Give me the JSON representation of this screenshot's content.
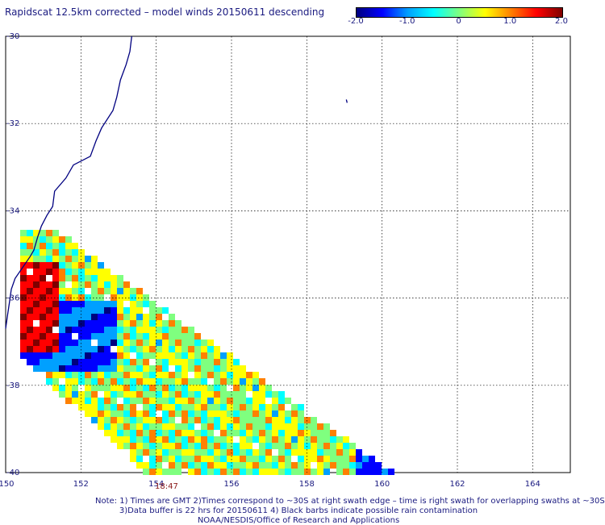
{
  "title": "Rapidscat 12.5km corrected – model winds 20150611 descending",
  "colorbar": {
    "ticks": [
      {
        "value": "-2.0",
        "frac": 0.0
      },
      {
        "value": "-1.0",
        "frac": 0.25
      },
      {
        "value": "0",
        "frac": 0.5
      },
      {
        "value": "1.0",
        "frac": 0.75
      },
      {
        "value": "2.0",
        "frac": 1.0
      }
    ],
    "gradient": [
      "#00007f",
      "#0000ff",
      "#00a0ff",
      "#00ffff",
      "#7fff7f",
      "#ffff00",
      "#ff8000",
      "#ff0000",
      "#7f0000"
    ]
  },
  "map": {
    "lon_range": [
      150,
      165
    ],
    "lat_range": [
      -40,
      -30
    ],
    "lon_ticks": [
      "150",
      "152",
      "154",
      "156",
      "158",
      "160",
      "162",
      "164"
    ],
    "lat_ticks": [
      "-30",
      "-32",
      "-34",
      "-36",
      "-38",
      "-40"
    ],
    "coast_color": "#000080",
    "grid_color": "#000000"
  },
  "swath_time": "18:47",
  "notes": {
    "line1": "Note: 1) Times are GMT 2)Times correspond to ~30S at right swath edge – time is right swath for overlapping swaths at ~30S",
    "line2": "3)Data buffer is 22 hrs for 20150611 4) Black barbs indicate possible rain contamination",
    "line3": "NOAA/NESDIS/Office of Research and Applications"
  }
}
